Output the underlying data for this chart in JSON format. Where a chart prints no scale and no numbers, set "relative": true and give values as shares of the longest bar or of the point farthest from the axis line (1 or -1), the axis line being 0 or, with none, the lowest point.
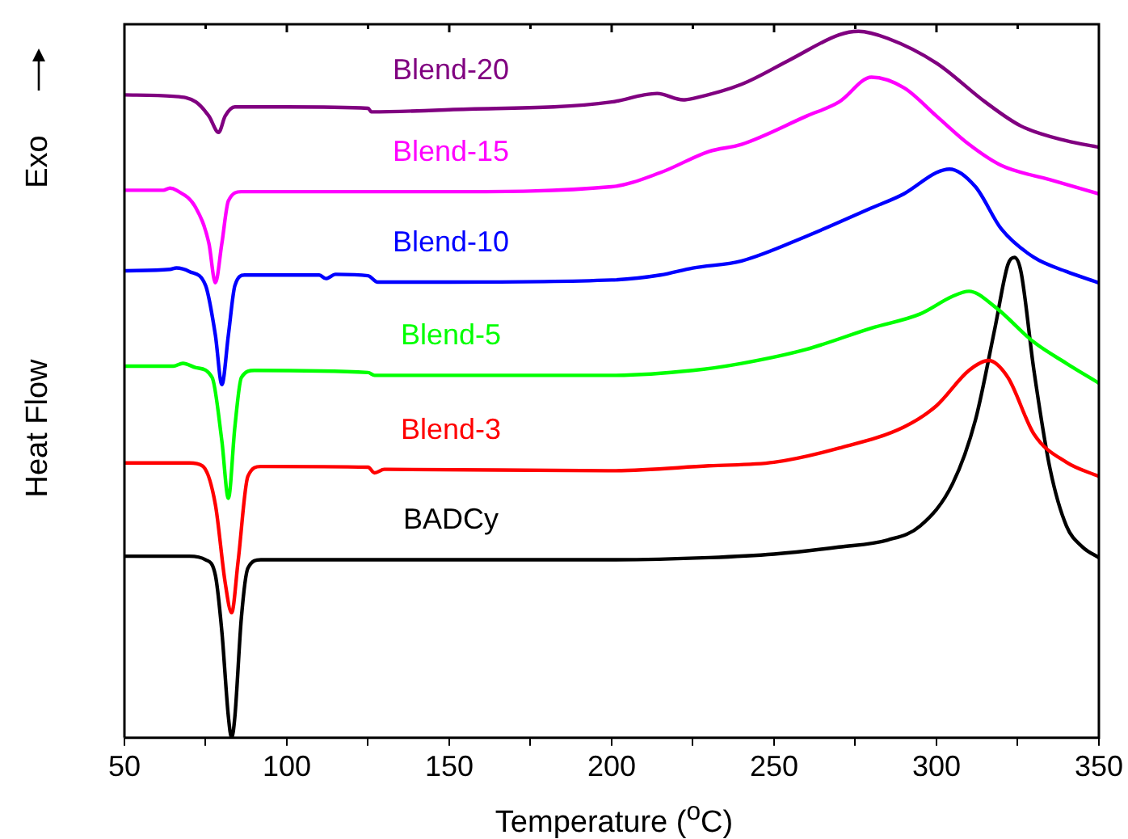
{
  "chart_data": {
    "type": "line",
    "relative": true,
    "xlabel": "Temperature ($^{o}$C)",
    "ylabel": "Heat Flow",
    "annotations": [
      "Exo"
    ],
    "xlim": [
      50,
      350
    ],
    "xticks": [
      50,
      {
        "value": 75,
        "label": null
      },
      100,
      {
        "value": 125,
        "label": null
      },
      150,
      {
        "value": 175,
        "label": null
      },
      200,
      {
        "value": 225,
        "label": null
      },
      250,
      {
        "value": 275,
        "label": null
      },
      300,
      {
        "value": 325,
        "label": null
      },
      350
    ],
    "legend": false,
    "grid": false,
    "marker": "none",
    "line_style": "solid",
    "tick_labels": "x",
    "series": [
      {
        "name": "Blend-20",
        "color": "#800080",
        "x": [
          50,
          65,
          72,
          76,
          79,
          81,
          84,
          100,
          125,
          126,
          150,
          200,
          210,
          214,
          222,
          225,
          240,
          255,
          270,
          276,
          285,
          300,
          315,
          326,
          340,
          350
        ],
        "values": [
          0.91,
          0.908,
          0.9,
          0.88,
          0.857,
          0.88,
          0.893,
          0.893,
          0.891,
          0.886,
          0.889,
          0.9,
          0.91,
          0.912,
          0.903,
          0.905,
          0.925,
          0.96,
          0.995,
          1.0,
          0.99,
          0.955,
          0.9,
          0.866,
          0.845,
          0.836
        ]
      },
      {
        "name": "Blend-15",
        "color": "#ff00ff",
        "x": [
          50,
          62,
          64,
          66,
          72,
          76,
          78,
          80,
          82,
          86,
          150,
          200,
          215,
          230,
          240,
          260,
          270,
          280,
          290,
          300,
          310,
          320,
          335,
          350
        ],
        "values": [
          0.775,
          0.775,
          0.778,
          0.775,
          0.75,
          0.7,
          0.644,
          0.7,
          0.76,
          0.773,
          0.773,
          0.78,
          0.8,
          0.83,
          0.84,
          0.88,
          0.9,
          0.935,
          0.92,
          0.88,
          0.84,
          0.81,
          0.79,
          0.77
        ]
      },
      {
        "name": "Blend-10",
        "color": "#0000ff",
        "x": [
          50,
          64,
          66,
          70,
          75,
          78,
          80,
          82,
          84,
          87,
          110,
          112,
          115,
          125,
          128,
          150,
          200,
          215,
          225,
          240,
          260,
          280,
          290,
          300,
          304,
          312,
          320,
          330,
          340,
          350
        ],
        "values": [
          0.661,
          0.663,
          0.665,
          0.66,
          0.64,
          0.57,
          0.5,
          0.57,
          0.64,
          0.655,
          0.655,
          0.65,
          0.656,
          0.654,
          0.645,
          0.645,
          0.648,
          0.655,
          0.665,
          0.675,
          0.71,
          0.75,
          0.77,
          0.8,
          0.805,
          0.78,
          0.72,
          0.68,
          0.66,
          0.644
        ]
      },
      {
        "name": "Blend-5",
        "color": "#00ff00",
        "x": [
          50,
          65,
          68,
          72,
          77,
          80,
          82,
          84,
          86,
          90,
          125,
          127,
          150,
          200,
          225,
          240,
          260,
          280,
          295,
          305,
          310,
          318,
          330,
          340,
          350
        ],
        "values": [
          0.526,
          0.526,
          0.53,
          0.524,
          0.51,
          0.42,
          0.339,
          0.44,
          0.51,
          0.52,
          0.517,
          0.513,
          0.513,
          0.513,
          0.52,
          0.53,
          0.55,
          0.58,
          0.6,
          0.625,
          0.632,
          0.61,
          0.56,
          0.53,
          0.502
        ]
      },
      {
        "name": "Blend-3",
        "color": "#ff0000",
        "x": [
          50,
          70,
          74,
          78,
          81,
          83,
          85,
          88,
          92,
          125,
          127,
          130,
          200,
          230,
          250,
          270,
          290,
          300,
          310,
          316,
          322,
          330,
          340,
          350
        ],
        "values": [
          0.389,
          0.389,
          0.385,
          0.33,
          0.22,
          0.177,
          0.25,
          0.37,
          0.384,
          0.383,
          0.375,
          0.38,
          0.378,
          0.385,
          0.39,
          0.41,
          0.44,
          0.47,
          0.52,
          0.534,
          0.51,
          0.43,
          0.39,
          0.37
        ]
      },
      {
        "name": "BADCy",
        "color": "#000000",
        "x": [
          50,
          70,
          75,
          78,
          80,
          82,
          83,
          84,
          86,
          88,
          92,
          100,
          150,
          200,
          230,
          250,
          270,
          285,
          295,
          305,
          312,
          318,
          322,
          324,
          326,
          330,
          335,
          340,
          345,
          350
        ],
        "values": [
          0.257,
          0.257,
          0.252,
          0.23,
          0.15,
          0.03,
          0.0,
          0.03,
          0.17,
          0.24,
          0.252,
          0.252,
          0.252,
          0.252,
          0.255,
          0.26,
          0.27,
          0.28,
          0.3,
          0.36,
          0.45,
          0.58,
          0.67,
          0.68,
          0.66,
          0.52,
          0.38,
          0.3,
          0.27,
          0.255
        ]
      }
    ]
  }
}
